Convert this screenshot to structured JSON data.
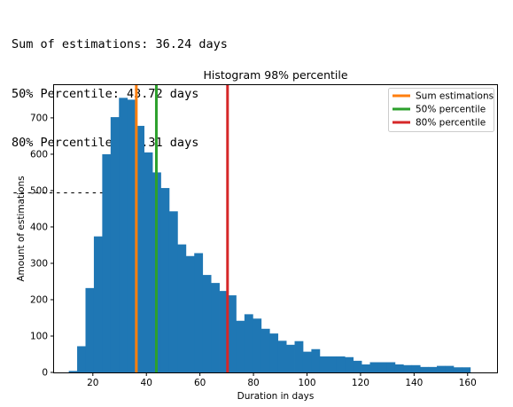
{
  "console": {
    "lines": [
      "Sum of estimations: 36.24 days",
      "50% Percentile: 43.72 days",
      "80% Percentile: 70.31 days",
      "----------------------"
    ]
  },
  "chart_data": {
    "type": "bar",
    "title": "Histogram 98% percentile",
    "xlabel": "Duration in days",
    "ylabel": "Amount of estimations",
    "xlim": [
      5.5,
      171
    ],
    "ylim": [
      0,
      790
    ],
    "xticks": [
      20,
      40,
      60,
      80,
      100,
      120,
      140,
      160
    ],
    "yticks": [
      0,
      100,
      200,
      300,
      400,
      500,
      600,
      700
    ],
    "bar_color": "#1f77b4",
    "bins": {
      "start": 11,
      "width": 3.125,
      "counts": [
        4,
        72,
        232,
        374,
        600,
        702,
        755,
        750,
        678,
        605,
        550,
        507,
        443,
        352,
        320,
        328,
        268,
        246,
        224,
        212,
        142,
        160,
        148,
        120,
        107,
        87,
        76,
        86,
        57,
        64,
        44,
        44,
        44,
        42,
        32,
        22,
        28,
        28,
        28,
        22,
        20,
        20,
        15,
        15,
        18,
        18,
        14,
        14
      ]
    },
    "vlines": [
      {
        "name": "Sum estimations",
        "x": 36.24,
        "color": "#ff7f0e"
      },
      {
        "name": "50% percentile",
        "x": 43.72,
        "color": "#2ca02c"
      },
      {
        "name": "80% percentile",
        "x": 70.31,
        "color": "#d62728"
      }
    ],
    "legend": "top-right",
    "grid": false
  }
}
